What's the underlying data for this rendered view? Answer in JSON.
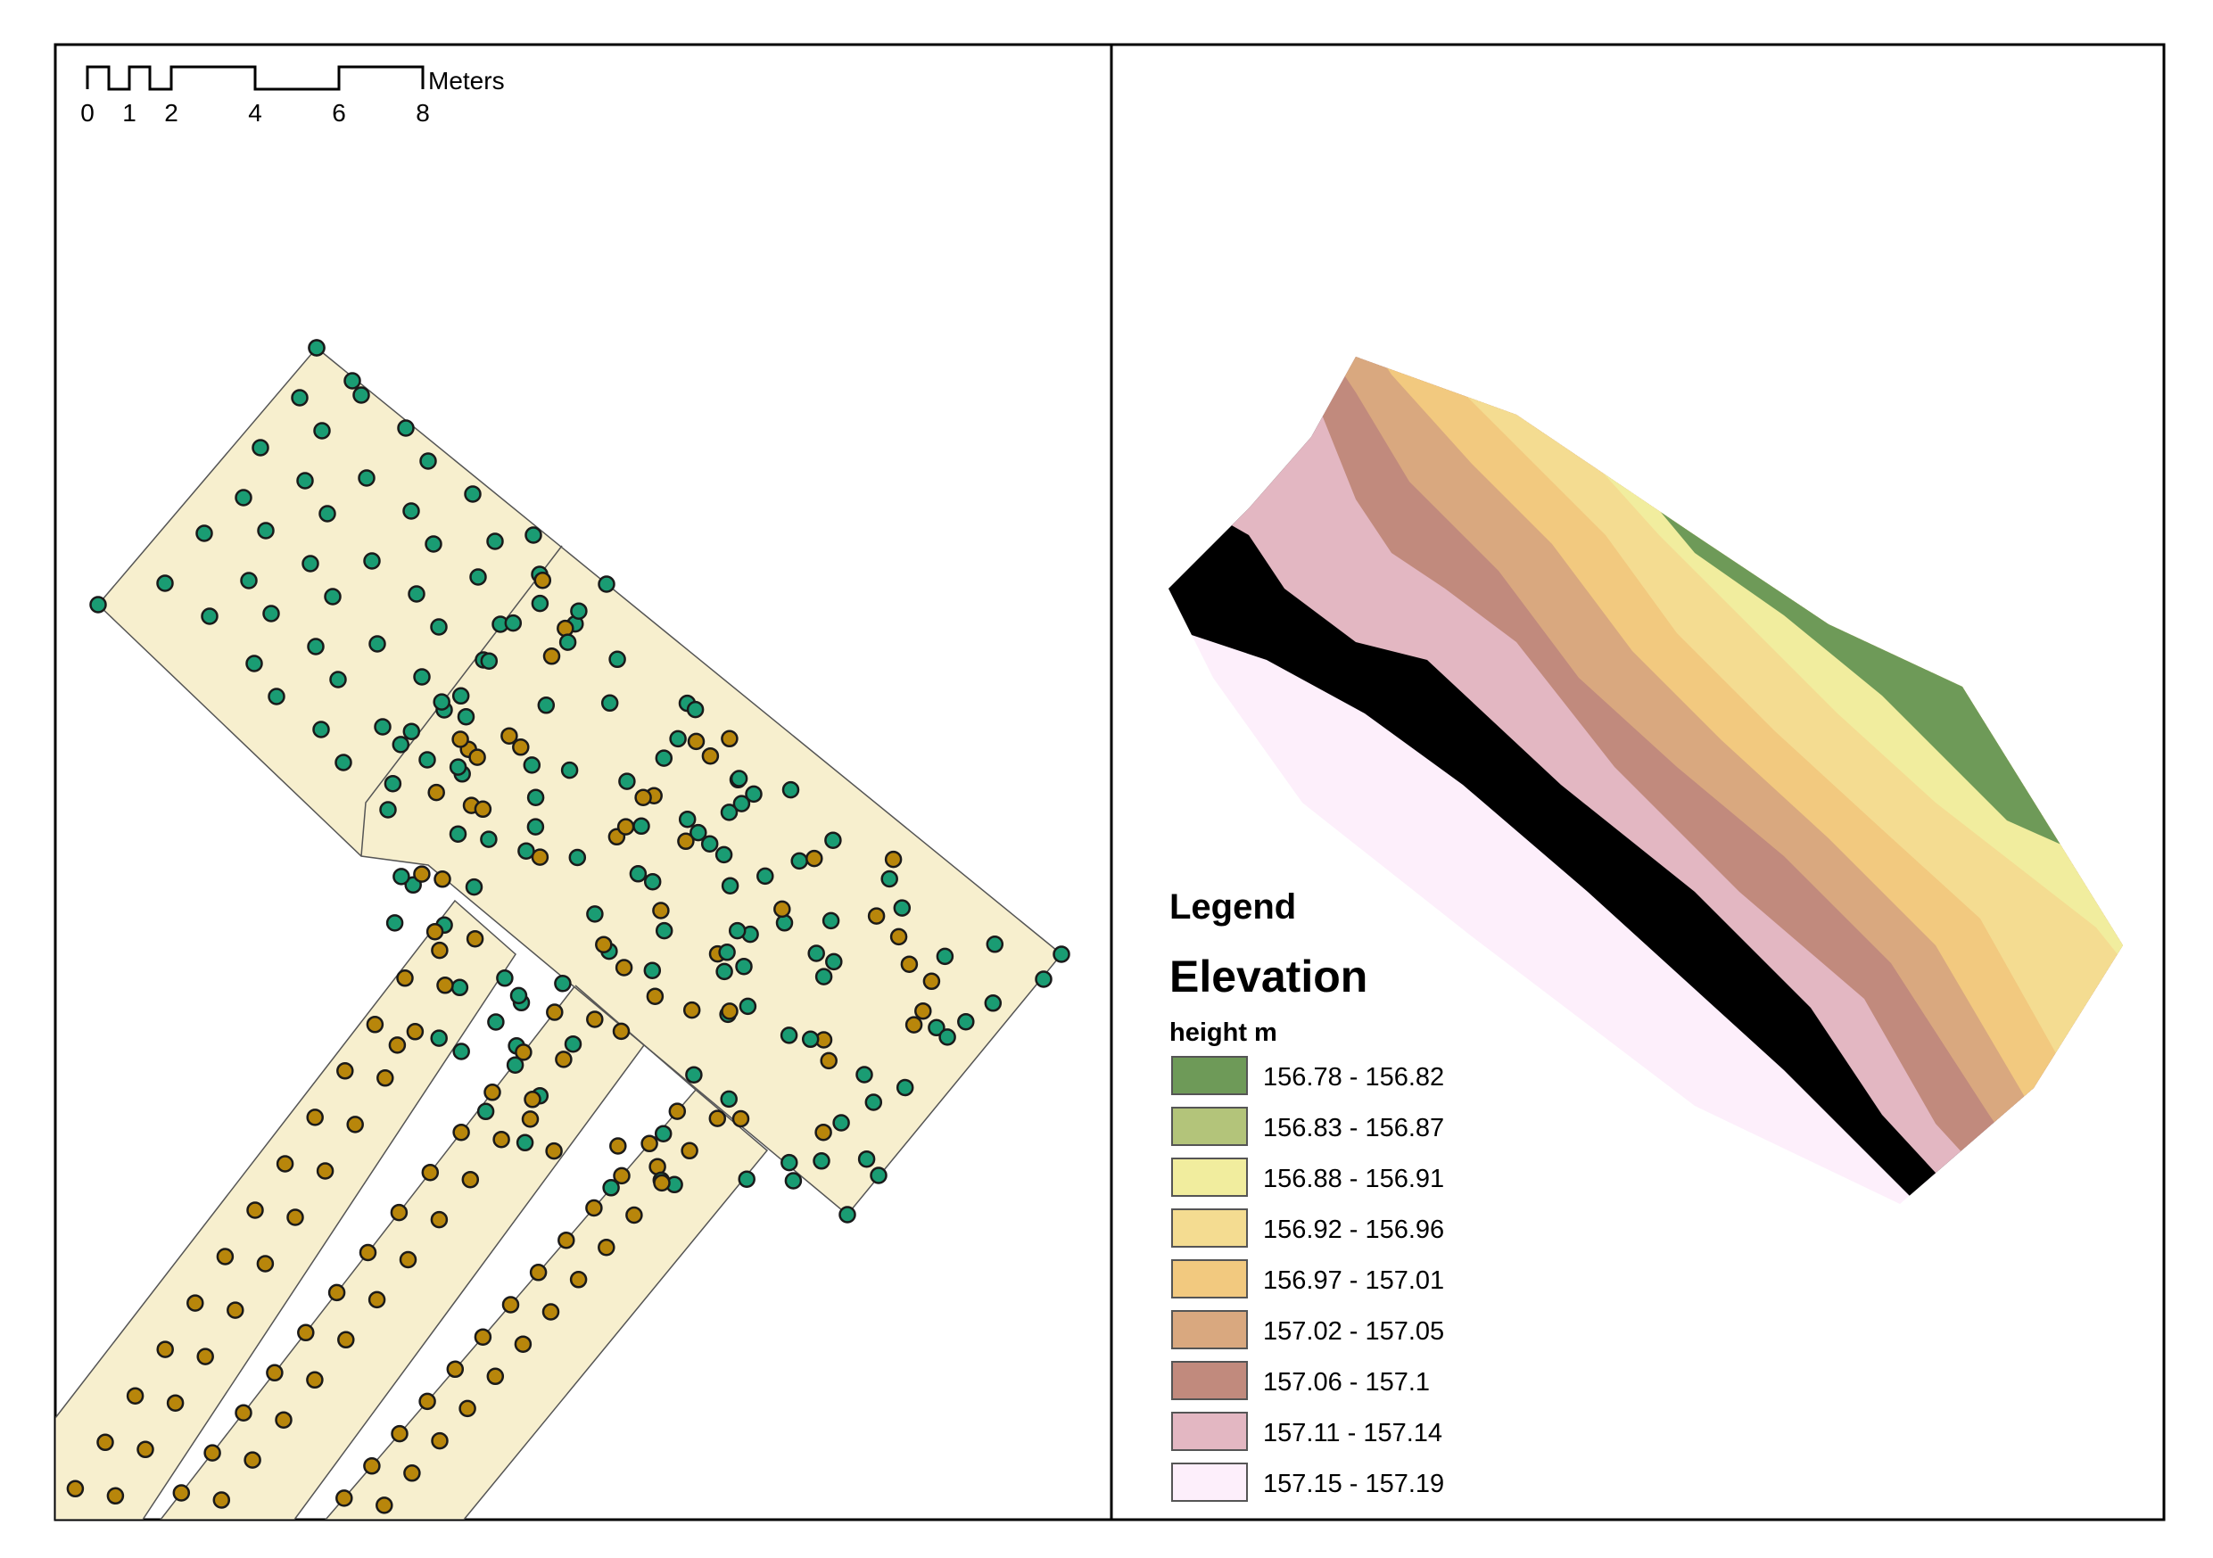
{
  "scalebar": {
    "unit": "Meters",
    "ticks": [
      "0",
      "1",
      "2",
      "4",
      "6",
      "8"
    ]
  },
  "legend": {
    "title": "Legend",
    "layer": "Elevation",
    "field": "height m",
    "classes": [
      {
        "label": "156.78 - 156.82",
        "color": "#6e9a58"
      },
      {
        "label": "156.83 - 156.87",
        "color": "#b3c47a"
      },
      {
        "label": "156.88 - 156.91",
        "color": "#f1ed9e"
      },
      {
        "label": "156.92 - 156.96",
        "color": "#f4dc91"
      },
      {
        "label": "156.97 - 157.01",
        "color": "#f2c97f"
      },
      {
        "label": "157.02 - 157.05",
        "color": "#d9a87f"
      },
      {
        "label": "157.06 - 157.1",
        "color": "#c18a7d"
      },
      {
        "label": "157.11 - 157.14",
        "color": "#e3b7c2"
      },
      {
        "label": "157.15 - 157.19",
        "color": "#fdeffb"
      }
    ]
  },
  "colors": {
    "plot_fill": "#f7efce",
    "point_green": "#1a9c73",
    "point_orange": "#b8860b",
    "frame": "#000000"
  }
}
